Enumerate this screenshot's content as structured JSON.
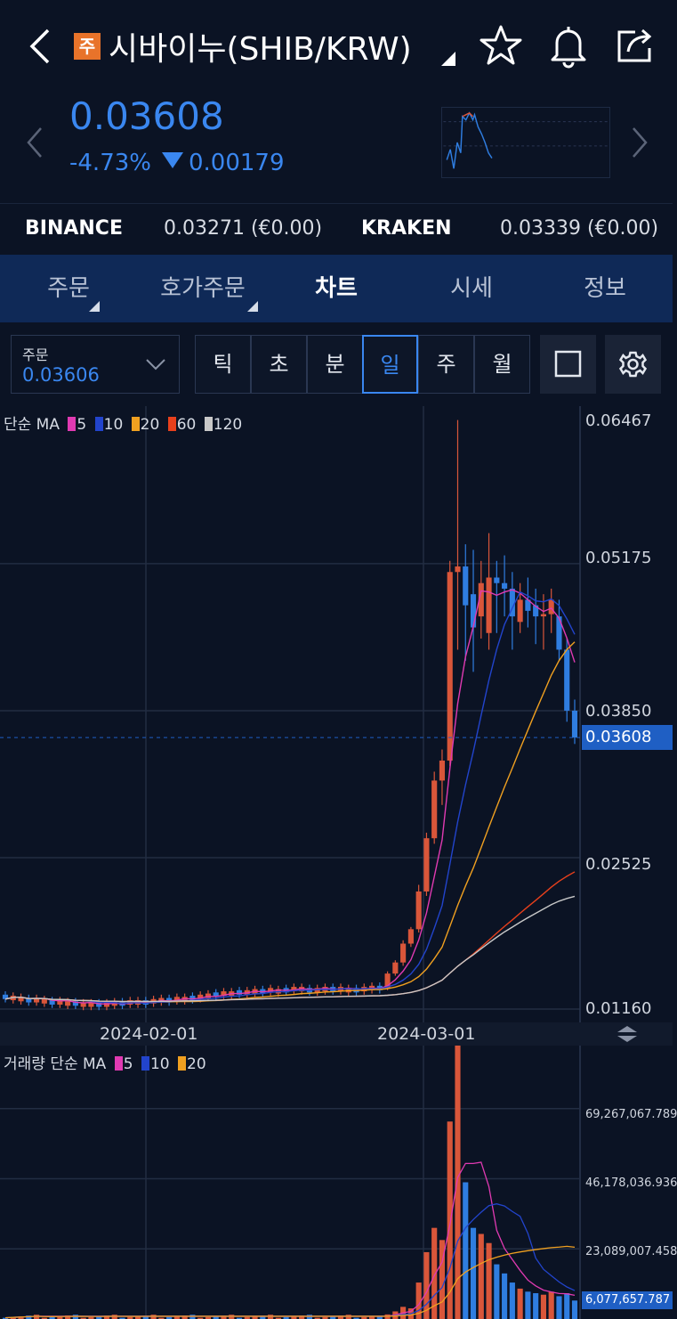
{
  "header": {
    "badge": "주",
    "title": "시바이누(SHIB/KRW)",
    "icons": [
      "back-icon",
      "star-icon",
      "bell-icon",
      "share-icon"
    ]
  },
  "price": {
    "current": "0.03608",
    "change_pct": "-4.73%",
    "change_abs": "0.00179"
  },
  "exchanges": [
    {
      "name": "BINANCE",
      "value": "0.03271 (€0.00)"
    },
    {
      "name": "KRAKEN",
      "value": "0.03339 (€0.00)"
    }
  ],
  "tabs": [
    {
      "label": "주문"
    },
    {
      "label": "호가주문"
    },
    {
      "label": "차트"
    },
    {
      "label": "시세"
    },
    {
      "label": "정보"
    }
  ],
  "toolbar": {
    "order_label": "주문",
    "order_value": "0.03606",
    "periods": [
      "틱",
      "초",
      "분",
      "일",
      "주",
      "월"
    ],
    "active_period": "일"
  },
  "chart_data": {
    "type": "candlestick",
    "price_legend": {
      "label": "단순 MA",
      "periods": [
        "5",
        "10",
        "20",
        "60",
        "120"
      ]
    },
    "volume_legend": {
      "label": "거래량 단순 MA",
      "periods": [
        "5",
        "10",
        "20"
      ]
    },
    "price_axis_ticks": [
      "0.06467",
      "0.05175",
      "0.03850",
      "0.02525",
      "0.01160"
    ],
    "price_axis_values": [
      0.06467,
      0.05175,
      0.0385,
      0.02525,
      0.0116
    ],
    "current_price_tag": "0.03608",
    "current_price": 0.03608,
    "volume_axis_ticks": [
      "69,267,067.789",
      "46,178,036.936",
      "23,089,007.458"
    ],
    "volume_axis_values": [
      69267067.789,
      46178036.936,
      23089007.458
    ],
    "current_volume_tag": "6,077,657.787",
    "x_ticks": [
      "2024-02-01",
      "2024-03-01"
    ],
    "colors": {
      "up": "#d9563a",
      "down": "#2f7de0",
      "ma5": "#e03ab2",
      "ma10": "#2244cc",
      "ma20": "#f0a020",
      "ma60": "#e8401c",
      "ma120": "#c8c8c8"
    }
  }
}
